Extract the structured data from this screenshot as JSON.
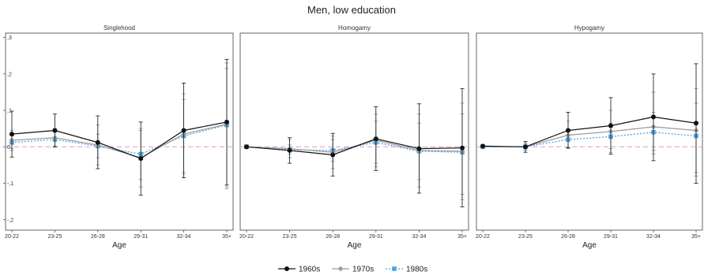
{
  "chart_data": {
    "type": "line",
    "title": "Men, low education",
    "xlabel": "Age",
    "categories": [
      "20-22",
      "23-25",
      "26-28",
      "29-31",
      "32-34",
      "35+"
    ],
    "ylim": [
      -0.22,
      0.31
    ],
    "yticks": [
      {
        "value": 0.3,
        "label": ",3"
      },
      {
        "value": 0.2,
        "label": ",2"
      },
      {
        "value": 0.1,
        "label": ",1"
      },
      {
        "value": 0.0,
        "label": "0"
      },
      {
        "value": -0.1,
        "label": "-,1"
      },
      {
        "value": -0.2,
        "label": "-,2"
      }
    ],
    "reference_line": 0,
    "legend_position": "bottom",
    "colors": {
      "1960s": "#111111",
      "1970s": "#9a9a9a",
      "1980s": "#4da6e0",
      "reference": "#e6a6c8"
    },
    "panels": [
      {
        "title": "Singlehood",
        "series": [
          {
            "name": "1960s",
            "values": [
              0.035,
              0.045,
              0.012,
              -0.032,
              0.045,
              0.068
            ],
            "lower": [
              -0.028,
              0.0,
              -0.06,
              -0.133,
              -0.085,
              -0.105
            ],
            "upper": [
              0.098,
              0.09,
              0.085,
              0.068,
              0.175,
              0.24
            ]
          },
          {
            "name": "1970s",
            "values": [
              0.018,
              0.025,
              0.005,
              -0.03,
              0.035,
              0.062
            ],
            "lower": [
              -0.01,
              0.0,
              -0.05,
              -0.11,
              -0.075,
              -0.11
            ],
            "upper": [
              0.045,
              0.05,
              0.06,
              0.05,
              0.145,
              0.23
            ]
          },
          {
            "name": "1980s",
            "values": [
              0.012,
              0.02,
              0.002,
              -0.02,
              0.03,
              0.06
            ],
            "lower": [
              -0.005,
              0.002,
              -0.03,
              -0.09,
              -0.07,
              -0.115
            ],
            "upper": [
              0.03,
              0.04,
              0.035,
              0.045,
              0.13,
              0.215
            ]
          }
        ]
      },
      {
        "title": "Homogamy",
        "series": [
          {
            "name": "1960s",
            "values": [
              0.0,
              -0.01,
              -0.022,
              0.022,
              -0.005,
              -0.003
            ],
            "lower": [
              -0.005,
              -0.045,
              -0.08,
              -0.065,
              -0.127,
              -0.165
            ],
            "upper": [
              0.005,
              0.025,
              0.037,
              0.11,
              0.118,
              0.16
            ]
          },
          {
            "name": "1970s",
            "values": [
              0.0,
              -0.005,
              -0.015,
              0.018,
              -0.01,
              -0.012
            ],
            "lower": [
              -0.004,
              -0.03,
              -0.06,
              -0.055,
              -0.11,
              -0.145
            ],
            "upper": [
              0.004,
              0.02,
              0.03,
              0.09,
              0.09,
              0.12
            ]
          },
          {
            "name": "1980s",
            "values": [
              0.0,
              -0.008,
              -0.01,
              0.012,
              -0.012,
              -0.015
            ],
            "lower": [
              -0.003,
              -0.02,
              -0.04,
              -0.045,
              -0.09,
              -0.13
            ],
            "upper": [
              0.003,
              0.005,
              0.02,
              0.07,
              0.065,
              0.09
            ]
          }
        ]
      },
      {
        "title": "Hypogamy",
        "series": [
          {
            "name": "1960s",
            "values": [
              0.002,
              0.0,
              0.045,
              0.058,
              0.082,
              0.065
            ],
            "lower": [
              -0.002,
              -0.015,
              -0.003,
              -0.02,
              -0.038,
              -0.1
            ],
            "upper": [
              0.006,
              0.015,
              0.095,
              0.135,
              0.2,
              0.228
            ]
          },
          {
            "name": "1970s",
            "values": [
              0.001,
              0.0,
              0.032,
              0.042,
              0.055,
              0.045
            ],
            "lower": [
              -0.002,
              -0.01,
              -0.005,
              -0.015,
              -0.02,
              -0.08
            ],
            "upper": [
              0.004,
              0.01,
              0.07,
              0.1,
              0.15,
              0.16
            ]
          },
          {
            "name": "1980s",
            "values": [
              0.0,
              0.0,
              0.02,
              0.028,
              0.04,
              0.03
            ],
            "lower": [
              -0.002,
              -0.006,
              -0.002,
              -0.005,
              -0.01,
              -0.07
            ],
            "upper": [
              0.003,
              0.006,
              0.045,
              0.065,
              0.095,
              0.12
            ]
          }
        ]
      }
    ]
  }
}
